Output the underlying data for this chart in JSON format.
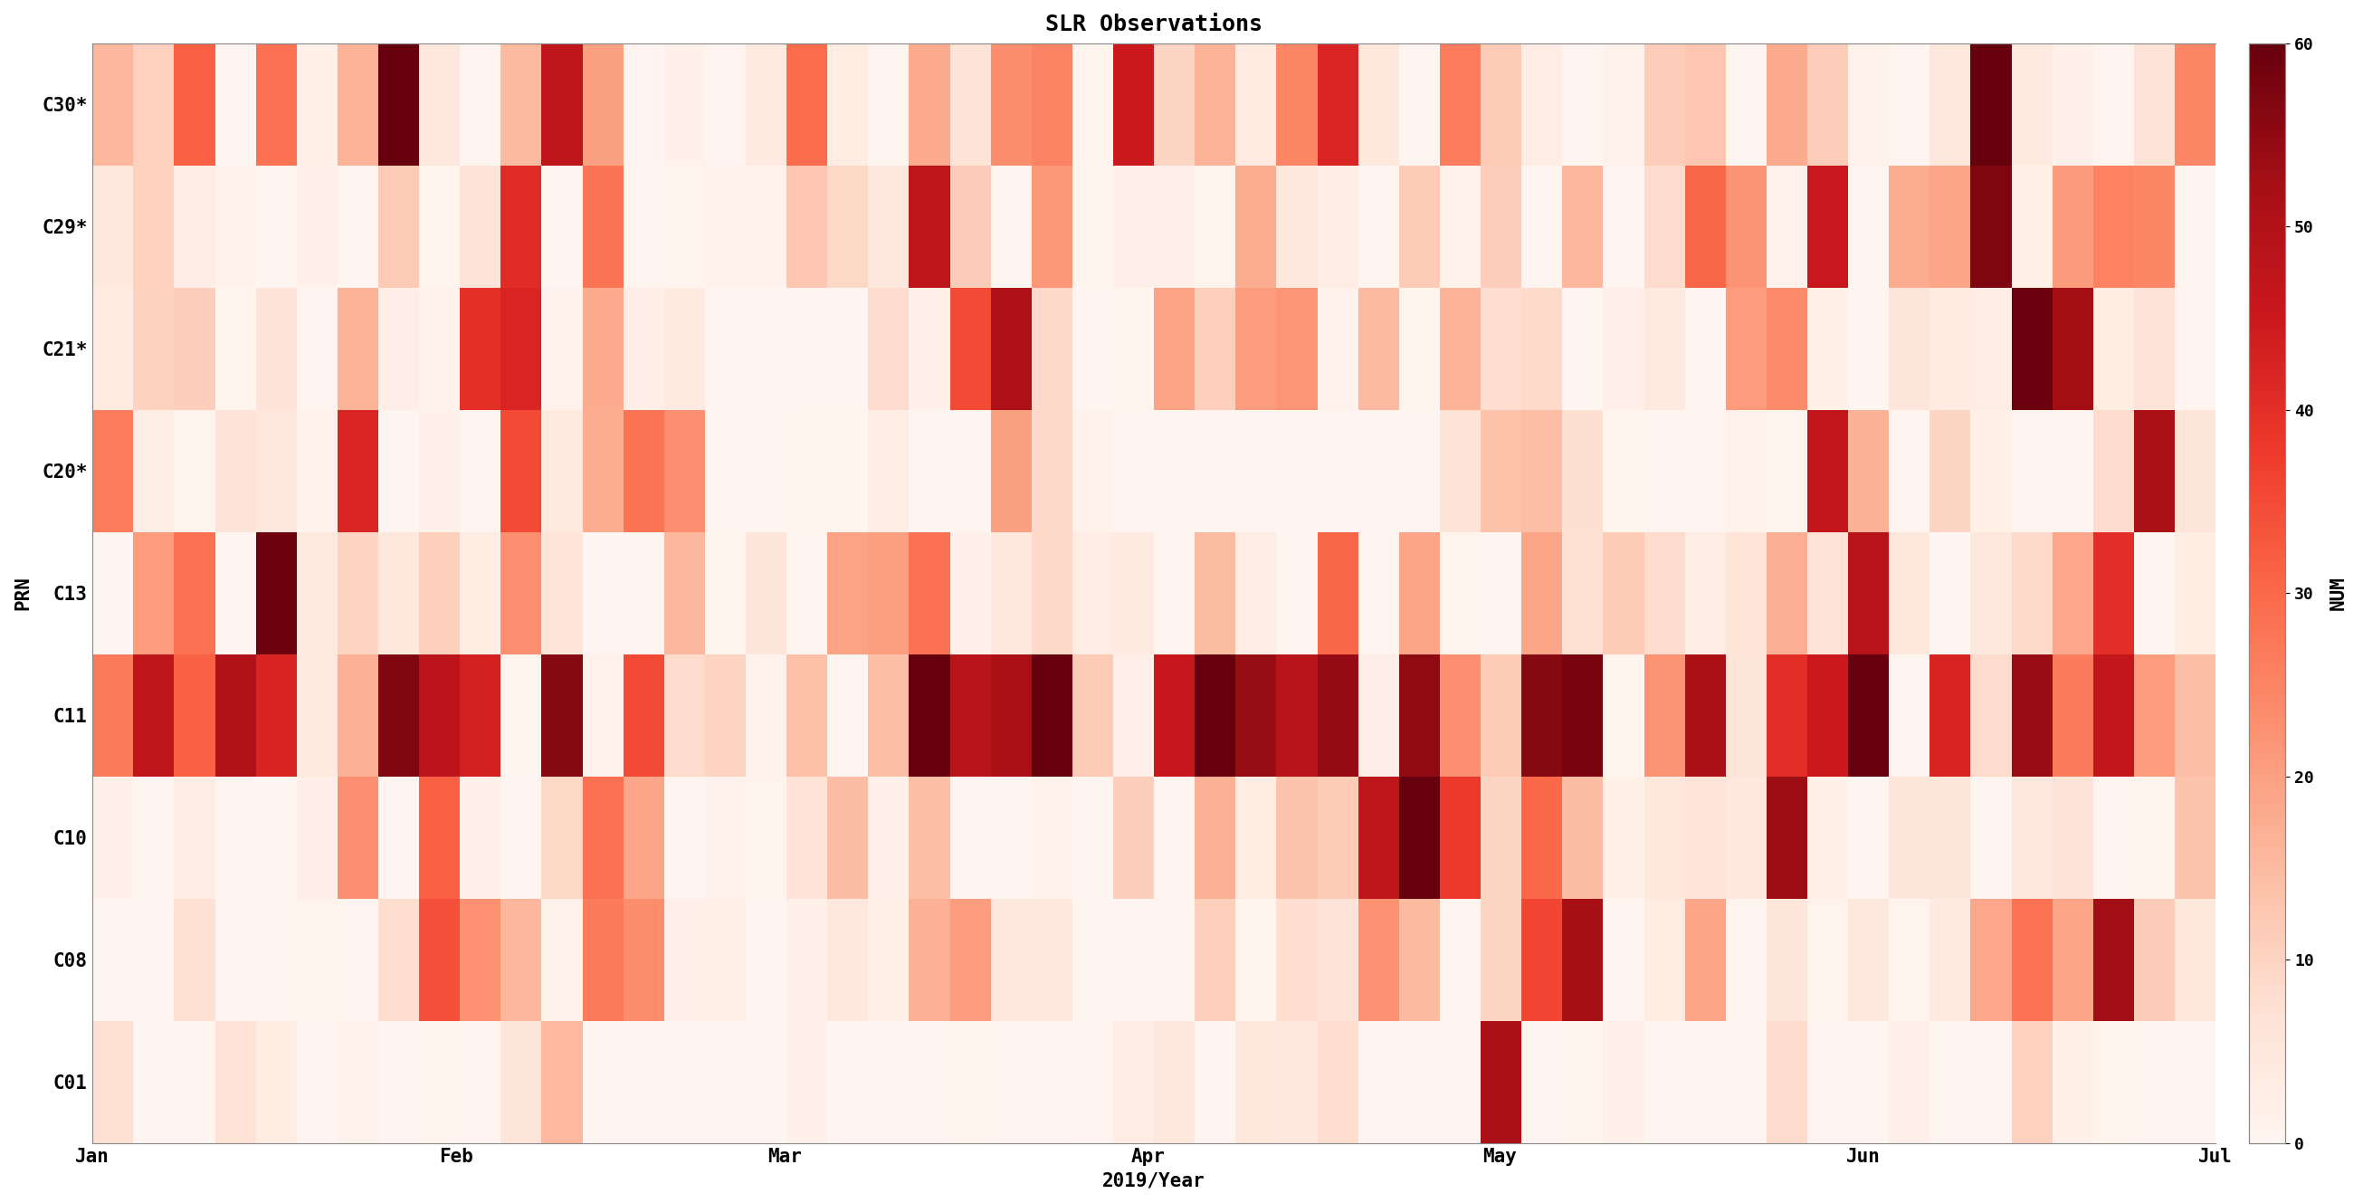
{
  "title": "SLR Observations",
  "xlabel": "2019/Year",
  "ylabel": "PRN",
  "colorbar_label": "NUM",
  "prn_labels": [
    "C01",
    "C08",
    "C10",
    "C11",
    "C13",
    "C20*",
    "C21*",
    "C29*",
    "C30*"
  ],
  "month_labels": [
    "Jan",
    "Feb",
    "Mar",
    "Apr",
    "May",
    "Jun",
    "Jul"
  ],
  "vmin": 0,
  "vmax": 60,
  "colormap": "Reds",
  "n_days": 181,
  "month_starts": [
    0,
    31,
    59,
    90,
    120,
    151,
    181
  ],
  "figsize": [
    26.11,
    13.29
  ],
  "title_fontsize": 18,
  "label_fontsize": 15,
  "tick_fontsize": 13,
  "colorbar_ticks": [
    0,
    10,
    20,
    30,
    40,
    50,
    60
  ],
  "n_bins": 52
}
